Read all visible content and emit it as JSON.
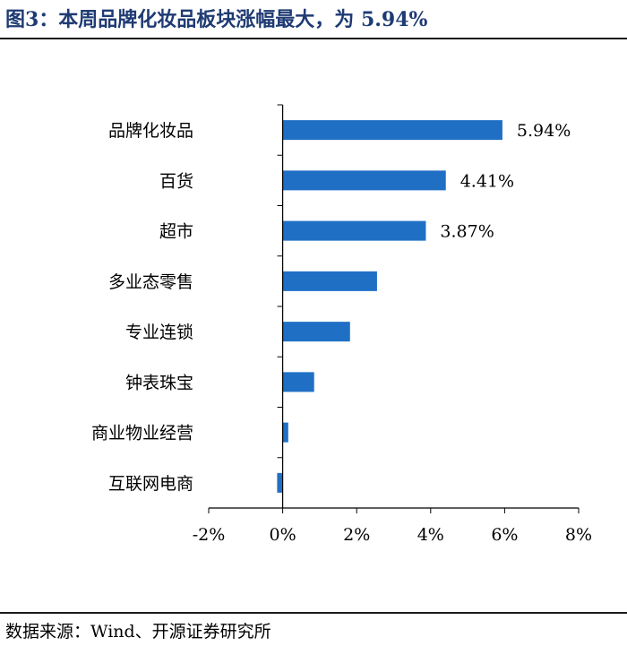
{
  "title": "图3：本周品牌化妆品板块涨幅最大，为 5.94%",
  "source": "数据来源：Wind、开源证券研究所",
  "chart_data": {
    "type": "bar",
    "orientation": "horizontal",
    "title": "",
    "xlabel": "",
    "ylabel": "",
    "categories": [
      "品牌化妆品",
      "百货",
      "超市",
      "多业态零售",
      "专业连锁",
      "钟表珠宝",
      "商业物业经营",
      "互联网电商"
    ],
    "values": [
      5.94,
      4.41,
      3.87,
      2.55,
      1.82,
      0.85,
      0.15,
      -0.15
    ],
    "data_labels": [
      "5.94%",
      "4.41%",
      "3.87%",
      "",
      "",
      "",
      "",
      ""
    ],
    "xlim": [
      -2,
      8
    ],
    "ticks": [
      -2,
      0,
      2,
      4,
      6,
      8
    ],
    "tick_labels": [
      "-2%",
      "0%",
      "2%",
      "4%",
      "6%",
      "8%"
    ],
    "bar_color": "#1f6fc5",
    "grid": false,
    "legend": "none"
  }
}
